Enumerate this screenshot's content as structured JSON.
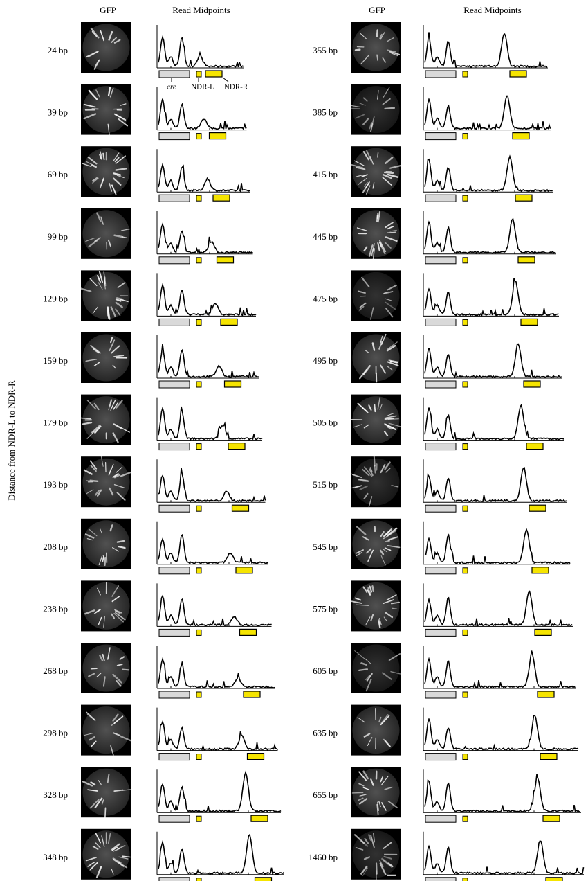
{
  "header": {
    "left": {
      "gfp": "GFP",
      "reads": "Read Midpoints"
    },
    "right": {
      "gfp": "GFP",
      "reads": "Read Midpoints"
    }
  },
  "y_axis_label": "Distance from NDR-L to NDR-R",
  "annotations": {
    "cre": "cre",
    "ndr_l": "NDR-L",
    "ndr_r": "NDR-R"
  },
  "rows": {
    "left": [
      "24 bp",
      "39 bp",
      "69 bp",
      "99 bp",
      "129 bp",
      "159 bp",
      "179 bp",
      "193 bp",
      "208 bp",
      "238 bp",
      "268 bp",
      "298 bp",
      "328 bp",
      "348 bp"
    ],
    "right": [
      "355 bp",
      "385 bp",
      "415 bp",
      "445 bp",
      "475 bp",
      "495 bp",
      "505 bp",
      "515 bp",
      "545 bp",
      "575 bp",
      "605 bp",
      "635 bp",
      "655 bp",
      "1460 bp"
    ]
  }
}
